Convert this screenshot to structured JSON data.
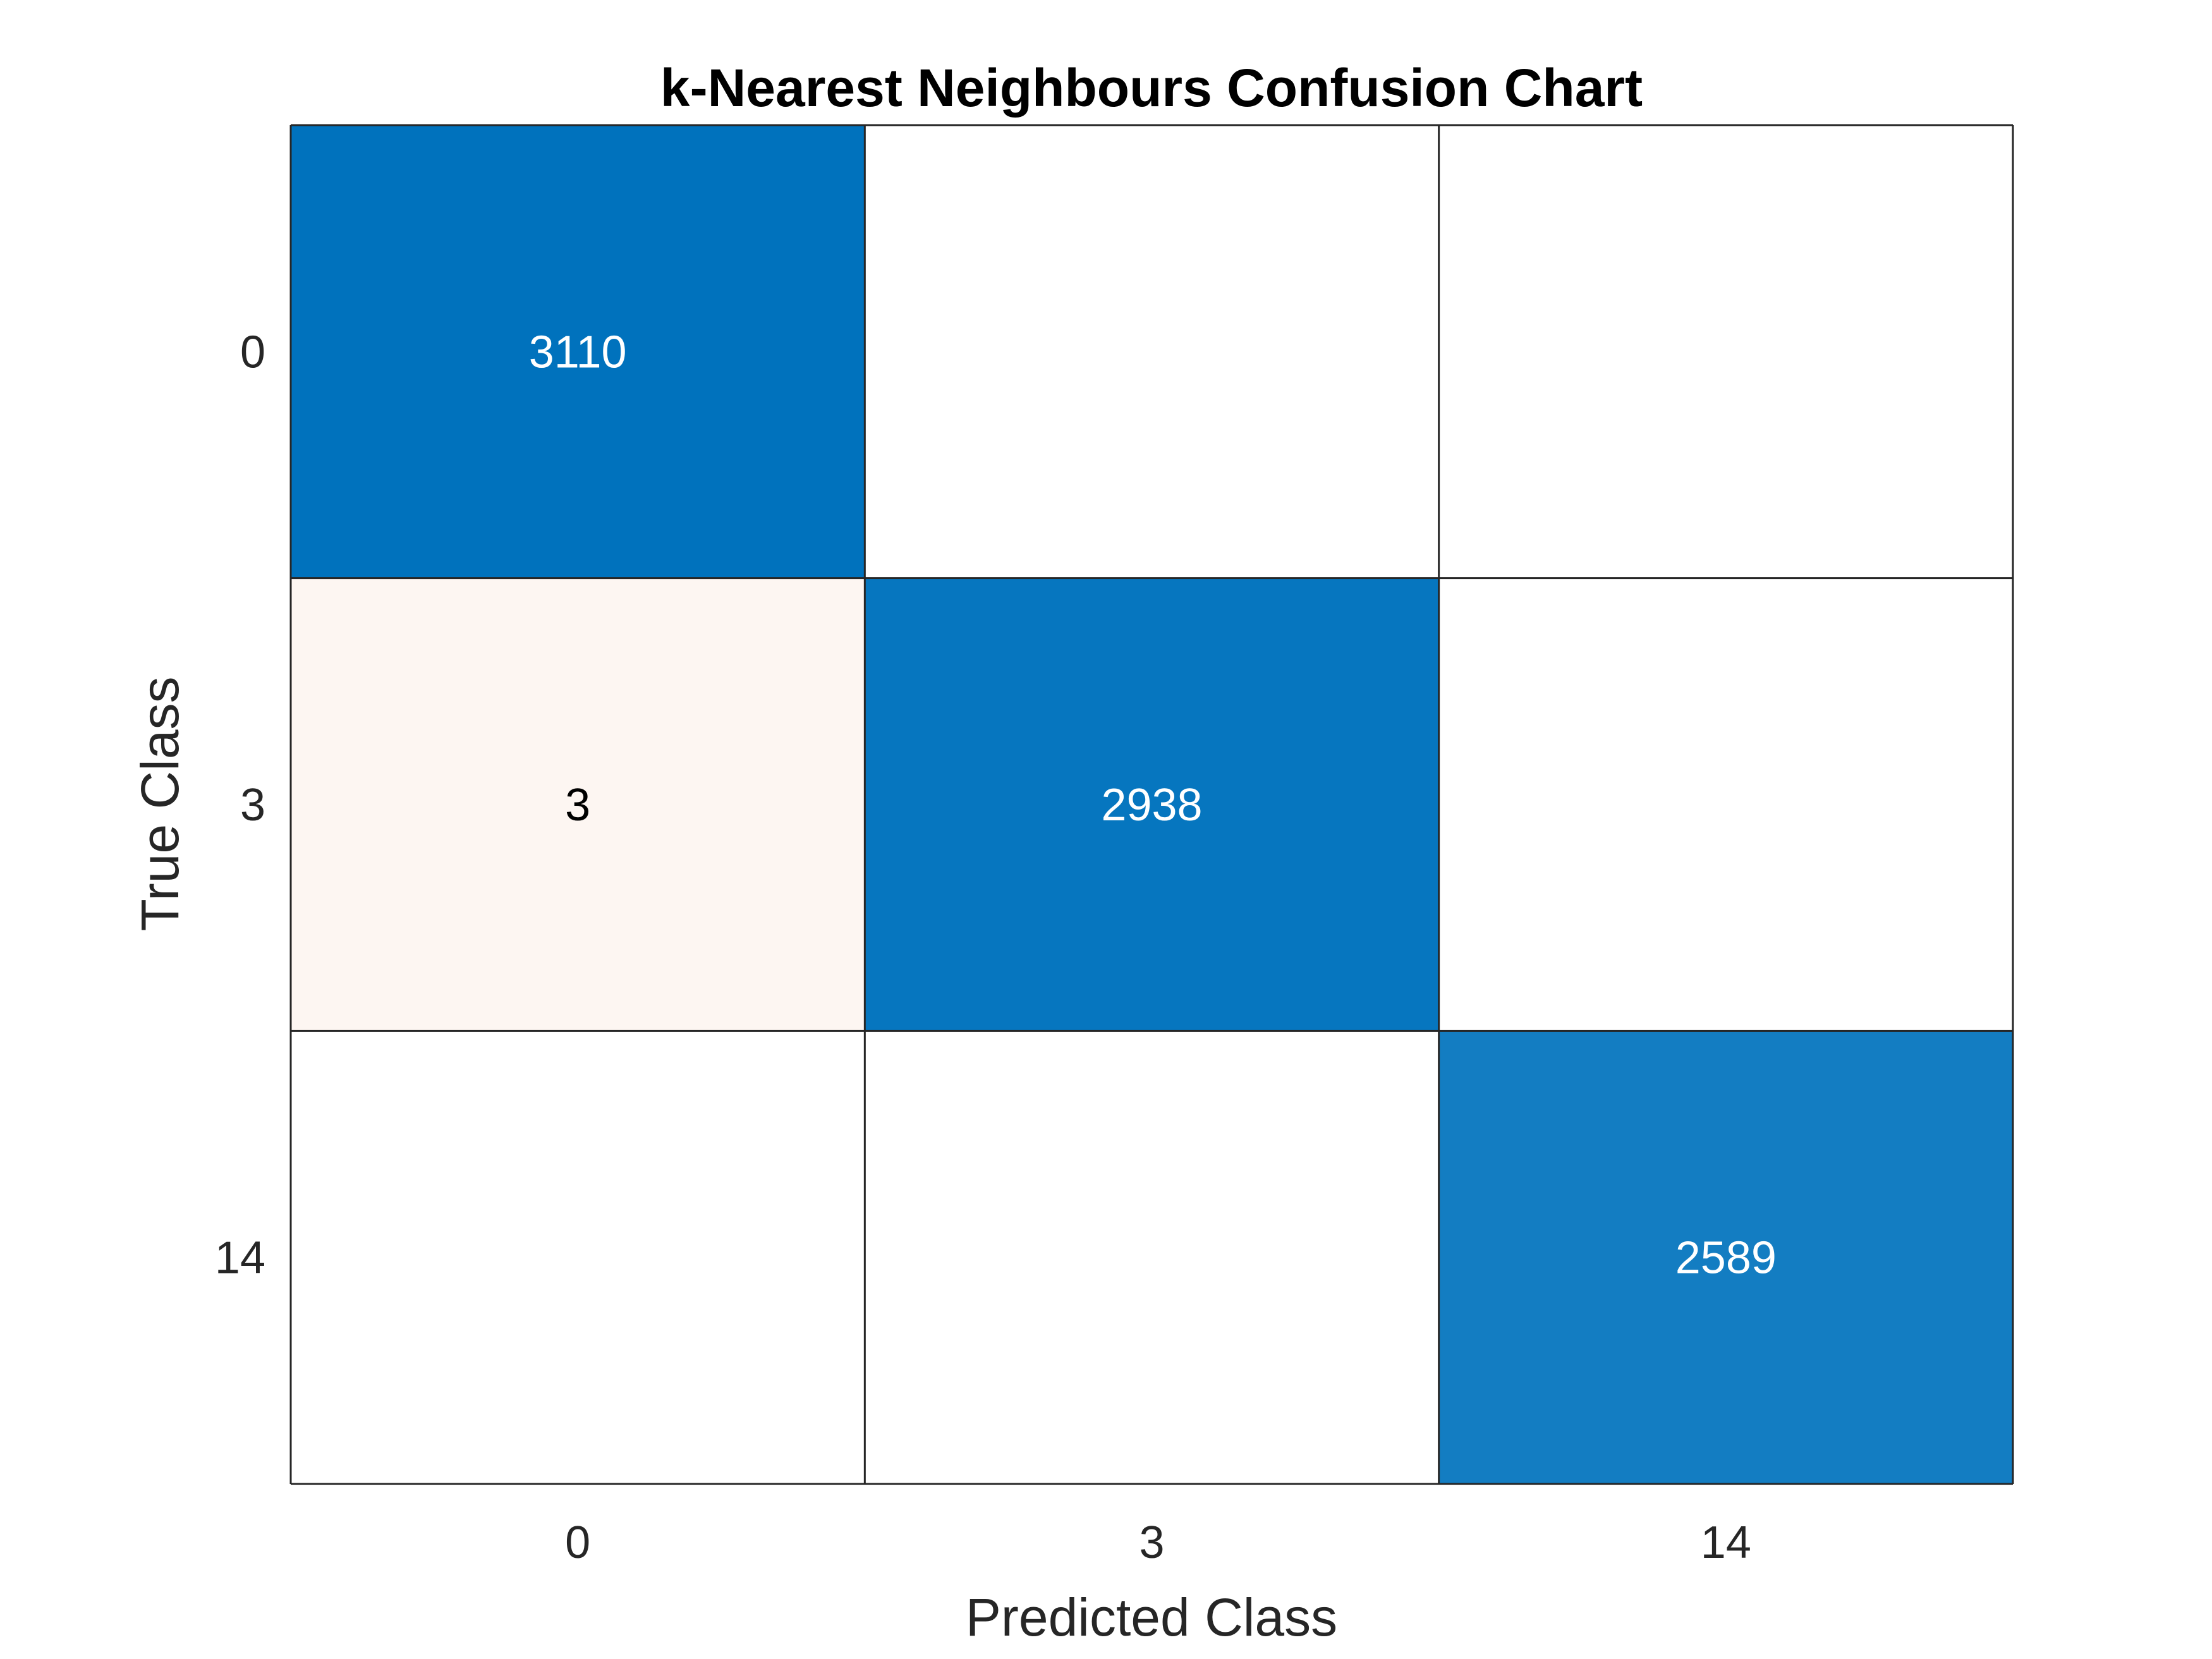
{
  "chart_data": {
    "type": "heatmap",
    "title": "k-Nearest Neighbours Confusion Chart",
    "xlabel": "Predicted Class",
    "ylabel": "True Class",
    "classes": [
      "0",
      "3",
      "14"
    ],
    "matrix": [
      [
        3110,
        null,
        null
      ],
      [
        3,
        2938,
        null
      ],
      [
        null,
        null,
        2589
      ]
    ],
    "diagonal_color": "#0072BD",
    "offdiagonal_color": "#D95319",
    "empty_color": "#FFFFFF",
    "grid_line_color": "#262626"
  }
}
